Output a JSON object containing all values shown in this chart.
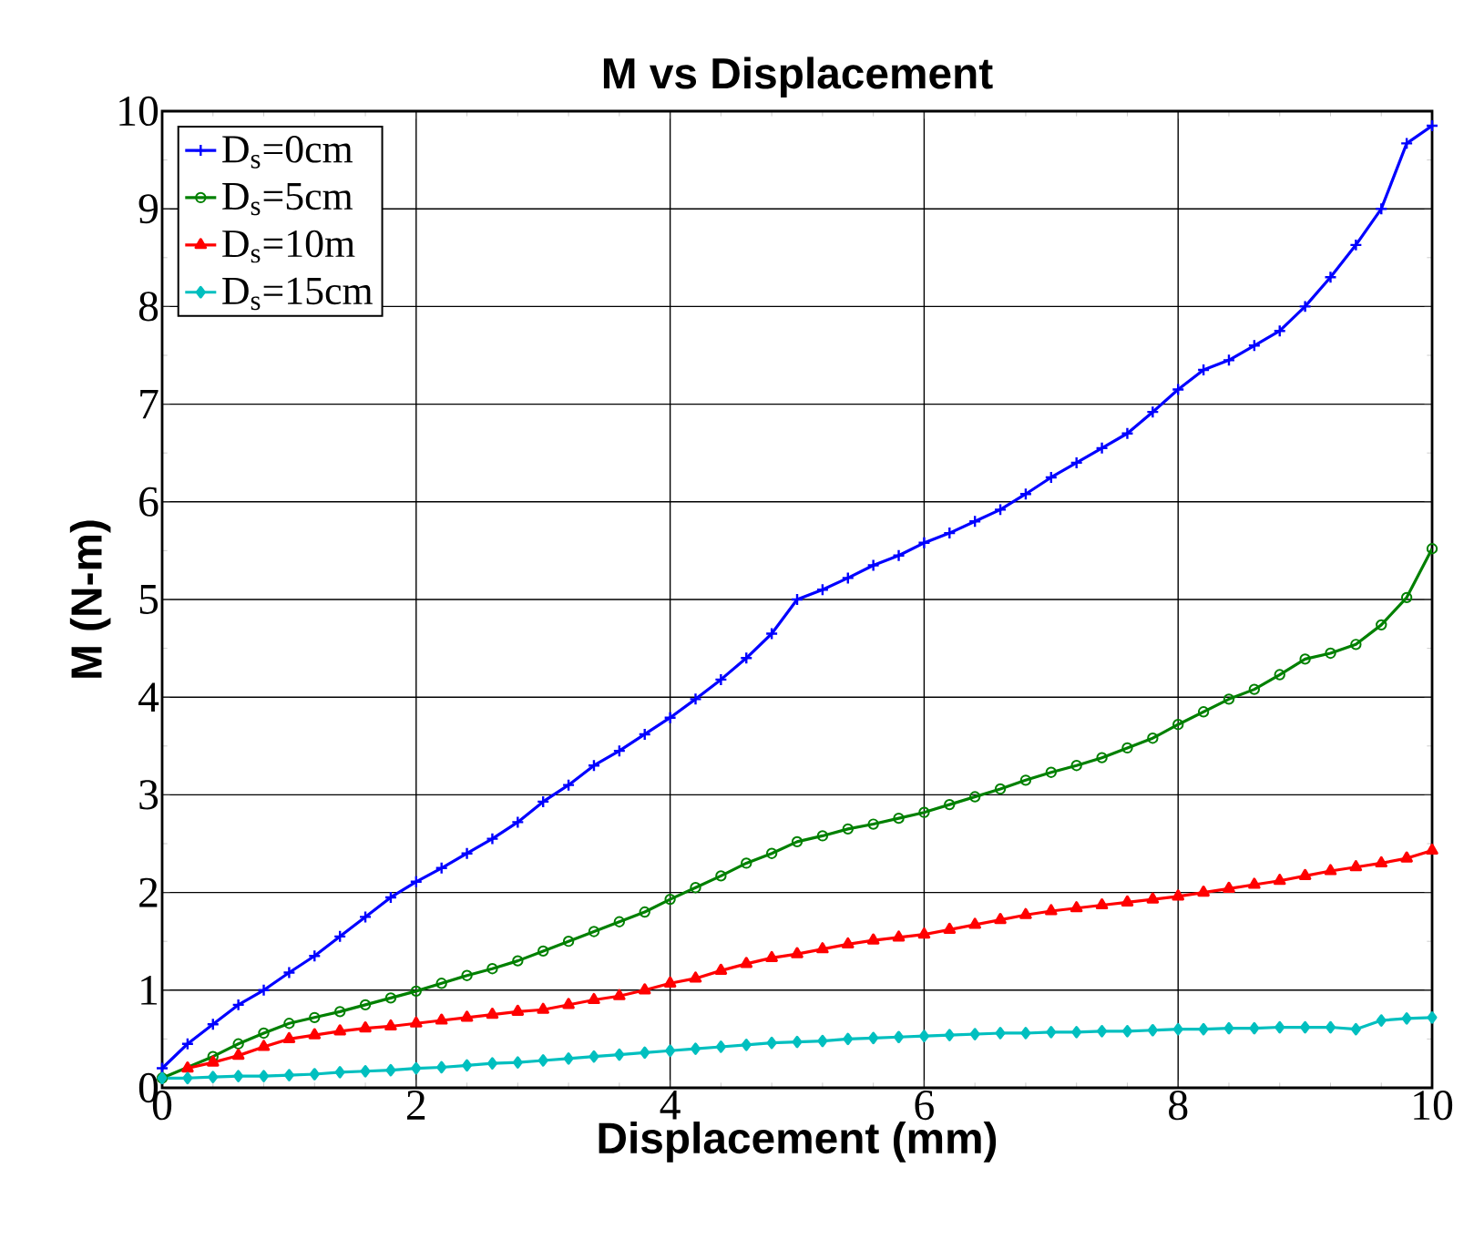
{
  "chart_data": {
    "type": "line",
    "title": "M vs Displacement",
    "xlabel": "Displacement (mm)",
    "ylabel": "M (N-m)",
    "x": [
      0,
      0.2,
      0.4,
      0.6,
      0.8,
      1.0,
      1.2,
      1.4,
      1.6,
      1.8,
      2.0,
      2.2,
      2.4,
      2.6,
      2.8,
      3.0,
      3.2,
      3.4,
      3.6,
      3.8,
      4.0,
      4.2,
      4.4,
      4.6,
      4.8,
      5.0,
      5.2,
      5.4,
      5.6,
      5.8,
      6.0,
      6.2,
      6.4,
      6.6,
      6.8,
      7.0,
      7.2,
      7.4,
      7.6,
      7.8,
      8.0,
      8.2,
      8.4,
      8.6,
      8.8,
      9.0,
      9.2,
      9.4,
      9.6,
      9.8,
      10
    ],
    "series": [
      {
        "name": "D$_{s}$=0cm",
        "color": "#0000ff",
        "marker": "cross",
        "values": [
          0.2,
          0.45,
          0.65,
          0.85,
          1.0,
          1.18,
          1.35,
          1.55,
          1.75,
          1.95,
          2.11,
          2.25,
          2.4,
          2.55,
          2.72,
          2.93,
          3.1,
          3.3,
          3.45,
          3.62,
          3.79,
          3.98,
          4.18,
          4.4,
          4.65,
          5.0,
          5.1,
          5.22,
          5.35,
          5.45,
          5.58,
          5.68,
          5.8,
          5.92,
          6.08,
          6.25,
          6.4,
          6.55,
          6.7,
          6.92,
          7.15,
          7.35,
          7.45,
          7.6,
          7.75,
          8.0,
          8.3,
          8.63,
          9.0,
          9.67,
          9.85
        ]
      },
      {
        "name": "D$_{s}$=5cm",
        "color": "#008000",
        "marker": "circle",
        "values": [
          0.1,
          null,
          0.32,
          0.45,
          0.56,
          0.66,
          0.72,
          0.78,
          0.85,
          0.92,
          0.99,
          1.07,
          1.15,
          1.22,
          1.3,
          1.4,
          1.5,
          1.6,
          1.7,
          1.8,
          1.93,
          2.05,
          2.17,
          2.3,
          2.4,
          2.52,
          2.58,
          2.65,
          2.7,
          2.76,
          2.82,
          2.9,
          2.98,
          3.06,
          3.15,
          3.23,
          3.3,
          3.38,
          3.48,
          3.58,
          3.72,
          3.85,
          3.98,
          4.08,
          4.23,
          4.39,
          4.45,
          4.54,
          4.74,
          5.02,
          5.52
        ]
      },
      {
        "name": "D$_{s}$=10m",
        "color": "#ff0000",
        "marker": "triangle",
        "values": [
          null,
          0.2,
          0.26,
          0.33,
          0.42,
          0.5,
          0.54,
          0.58,
          0.61,
          0.63,
          0.66,
          0.69,
          0.72,
          0.75,
          0.78,
          0.8,
          0.85,
          0.9,
          0.94,
          1.0,
          1.07,
          1.12,
          1.2,
          1.27,
          1.33,
          1.37,
          1.42,
          1.47,
          1.51,
          1.54,
          1.57,
          1.62,
          1.67,
          1.72,
          1.77,
          1.81,
          1.84,
          1.87,
          1.9,
          1.93,
          1.96,
          2.0,
          2.04,
          2.08,
          2.12,
          2.17,
          2.22,
          2.26,
          2.3,
          2.35,
          2.43
        ]
      },
      {
        "name": "D$_{s}$=15cm",
        "color": "#00bfbf",
        "marker": "diamond",
        "values": [
          0.1,
          0.1,
          0.11,
          0.12,
          0.12,
          0.13,
          0.14,
          0.16,
          0.17,
          0.18,
          0.2,
          0.21,
          0.23,
          0.25,
          0.26,
          0.28,
          0.3,
          0.32,
          0.34,
          0.36,
          0.38,
          0.4,
          0.42,
          0.44,
          0.46,
          0.47,
          0.48,
          0.5,
          0.51,
          0.52,
          0.53,
          0.54,
          0.55,
          0.56,
          0.56,
          0.57,
          0.57,
          0.58,
          0.58,
          0.59,
          0.6,
          0.6,
          0.61,
          0.61,
          0.62,
          0.62,
          0.62,
          0.6,
          0.69,
          0.71,
          0.72
        ]
      }
    ],
    "xlim": [
      0,
      10
    ],
    "ylim": [
      0,
      10
    ],
    "xticks": [
      0,
      2,
      4,
      6,
      8,
      10
    ],
    "yticks": [
      0,
      1,
      2,
      3,
      4,
      5,
      6,
      7,
      8,
      9,
      10
    ],
    "grid": true,
    "legend": "top left",
    "line_style": "solid"
  }
}
